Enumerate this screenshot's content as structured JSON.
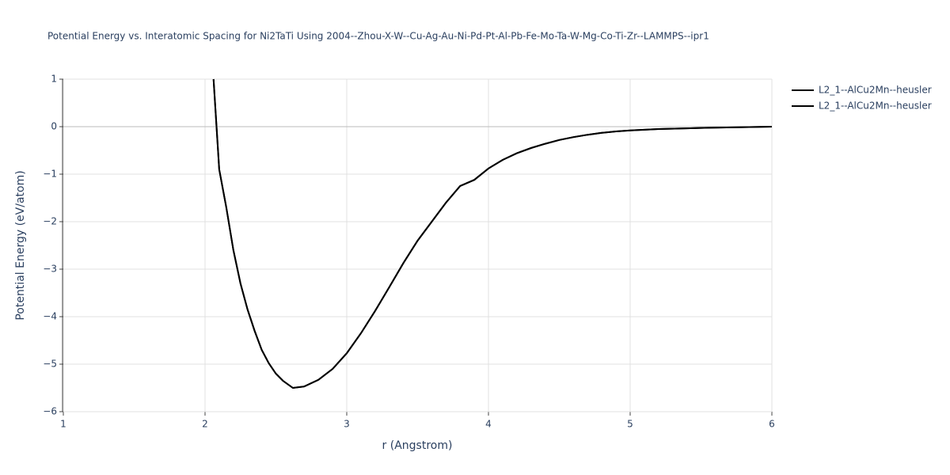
{
  "chart_data": {
    "type": "line",
    "title": "Potential Energy vs. Interatomic Spacing for Ni2TaTi Using 2004--Zhou-X-W--Cu-Ag-Au-Ni-Pd-Pt-Al-Pb-Fe-Mo-Ta-W-Mg-Co-Ti-Zr--LAMMPS--ipr1",
    "x_label": "r (Angstrom)",
    "y_label": "Potential Energy (eV/atom)",
    "x": [
      2.06,
      2.1,
      2.15,
      2.2,
      2.25,
      2.3,
      2.35,
      2.4,
      2.45,
      2.5,
      2.55,
      2.62,
      2.7,
      2.8,
      2.9,
      3.0,
      3.1,
      3.2,
      3.3,
      3.4,
      3.5,
      3.6,
      3.7,
      3.8,
      3.9,
      4.0,
      4.1,
      4.2,
      4.3,
      4.4,
      4.5,
      4.6,
      4.7,
      4.8,
      4.9,
      5.0,
      5.2,
      5.4,
      5.6,
      5.8,
      6.0
    ],
    "series": [
      {
        "name": "L2_1--AlCu2Mn--heusler",
        "color": "#000000",
        "values": [
          1.0,
          -0.9,
          -1.7,
          -2.6,
          -3.3,
          -3.85,
          -4.3,
          -4.7,
          -4.98,
          -5.2,
          -5.35,
          -5.5,
          -5.47,
          -5.33,
          -5.1,
          -4.77,
          -4.35,
          -3.88,
          -3.38,
          -2.87,
          -2.4,
          -2.0,
          -1.6,
          -1.25,
          -1.12,
          -0.88,
          -0.7,
          -0.56,
          -0.45,
          -0.36,
          -0.28,
          -0.22,
          -0.17,
          -0.13,
          -0.1,
          -0.08,
          -0.05,
          -0.035,
          -0.02,
          -0.01,
          0
        ]
      },
      {
        "name": "L2_1--AlCu2Mn--heusler",
        "color": "#000000",
        "values": [
          1.0,
          -0.9,
          -1.7,
          -2.6,
          -3.3,
          -3.85,
          -4.3,
          -4.7,
          -4.98,
          -5.2,
          -5.35,
          -5.5,
          -5.47,
          -5.33,
          -5.1,
          -4.77,
          -4.35,
          -3.88,
          -3.38,
          -2.87,
          -2.4,
          -2.0,
          -1.6,
          -1.25,
          -1.12,
          -0.88,
          -0.7,
          -0.56,
          -0.45,
          -0.36,
          -0.28,
          -0.22,
          -0.17,
          -0.13,
          -0.1,
          -0.08,
          -0.05,
          -0.035,
          -0.02,
          -0.01,
          0
        ]
      }
    ],
    "xlim": [
      1,
      6
    ],
    "xticks": [
      1,
      2,
      3,
      4,
      5,
      6
    ],
    "ylim": [
      -6,
      1
    ],
    "yticks": [
      {
        "value": -6,
        "label": "−6"
      },
      {
        "value": -5,
        "label": "−5"
      },
      {
        "value": -4,
        "label": "−4"
      },
      {
        "value": -3,
        "label": "−3"
      },
      {
        "value": -2,
        "label": "−2"
      },
      {
        "value": -1,
        "label": "−1"
      },
      0,
      1
    ],
    "grid": true,
    "legend": "top-right"
  }
}
